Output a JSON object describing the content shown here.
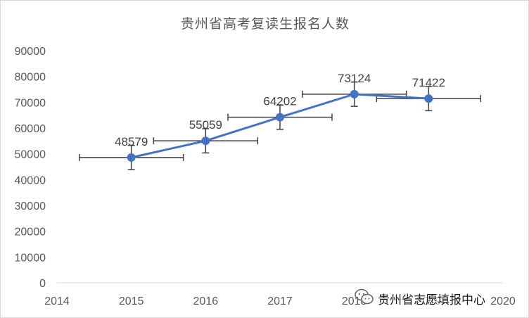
{
  "chart_data": {
    "type": "line",
    "title": "贵州省高考复读生报名人数",
    "x": [
      2015,
      2016,
      2017,
      2018,
      2019
    ],
    "series": [
      {
        "values": [
          48579,
          55059,
          64202,
          73124,
          71422
        ]
      }
    ],
    "data_labels": [
      "48579",
      "55059",
      "64202",
      "73124",
      "71422"
    ],
    "error_bars": {
      "x_error": 0.7,
      "y_error": 4700
    },
    "xlim": [
      2014,
      2020
    ],
    "ylim": [
      0,
      90000
    ],
    "x_ticks": [
      "2014",
      "2015",
      "2016",
      "2017",
      "2018",
      "2019",
      "2020"
    ],
    "y_ticks": [
      "0",
      "10000",
      "20000",
      "30000",
      "40000",
      "50000",
      "60000",
      "70000",
      "80000",
      "90000"
    ],
    "grid": false,
    "xlabel": "",
    "ylabel": "",
    "line_color": "#4472c4",
    "error_bar_color": "#404040",
    "axis_color": "#d9d9d9"
  },
  "watermark": {
    "text": "贵州省志愿填报中心",
    "icon": "wechat-icon"
  }
}
